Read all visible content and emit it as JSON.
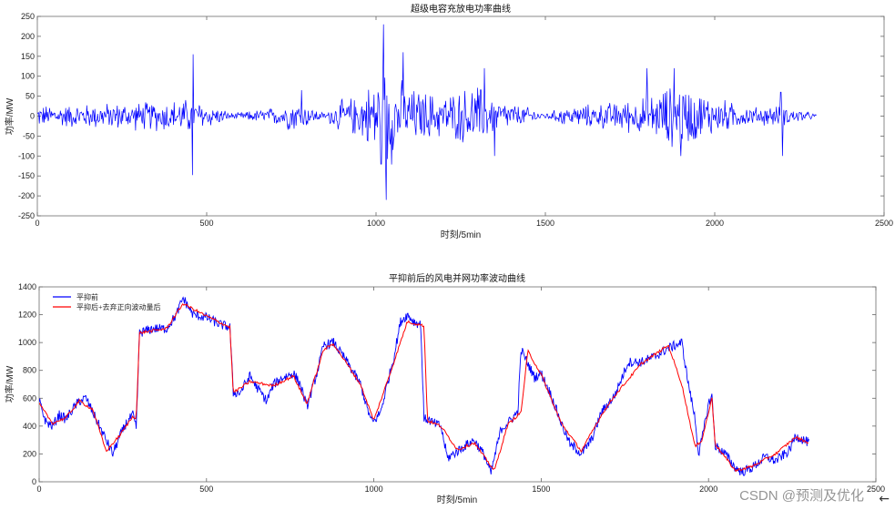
{
  "chart_data": [
    {
      "type": "line",
      "title": "超级电容充放电功率曲线",
      "xlabel": "时刻/5min",
      "ylabel": "功率/MW",
      "xlim": [
        0,
        2500
      ],
      "ylim": [
        -250,
        250
      ],
      "xticks": [
        0,
        500,
        1000,
        1500,
        2000,
        2500
      ],
      "yticks": [
        -250,
        -200,
        -150,
        -100,
        -50,
        0,
        50,
        100,
        150,
        200,
        250
      ],
      "grid": false,
      "series": [
        {
          "color": "#0000ff",
          "x_range": [
            0,
            2300
          ],
          "envelope_x": [
            0,
            150,
            300,
            450,
            500,
            580,
            700,
            760,
            850,
            880,
            950,
            1000,
            1020,
            1030,
            1050,
            1100,
            1200,
            1300,
            1350,
            1400,
            1450,
            1500,
            1550,
            1700,
            1800,
            1850,
            1900,
            1950,
            2000,
            2100,
            2180,
            2250,
            2300
          ],
          "envelope_amplitude": [
            30,
            35,
            40,
            50,
            35,
            8,
            25,
            45,
            8,
            40,
            60,
            110,
            140,
            200,
            120,
            80,
            60,
            90,
            50,
            35,
            25,
            8,
            25,
            40,
            55,
            80,
            95,
            70,
            55,
            25,
            30,
            20,
            5
          ],
          "peaks": [
            {
              "x": 460,
              "y": 155
            },
            {
              "x": 458,
              "y": -148
            },
            {
              "x": 1022,
              "y": 230
            },
            {
              "x": 1030,
              "y": -210
            },
            {
              "x": 1015,
              "y": -120
            },
            {
              "x": 1080,
              "y": 160
            },
            {
              "x": 1320,
              "y": 120
            },
            {
              "x": 1350,
              "y": -100
            },
            {
              "x": 780,
              "y": 65
            },
            {
              "x": 1800,
              "y": 120
            },
            {
              "x": 1880,
              "y": 120
            },
            {
              "x": 1900,
              "y": -100
            },
            {
              "x": 2200,
              "y": -100
            },
            {
              "x": 2195,
              "y": 60
            }
          ]
        }
      ]
    },
    {
      "type": "line",
      "title": "平抑前后的风电并网功率波动曲线",
      "xlabel": "时刻/5min",
      "ylabel": "功率/MW",
      "xlim": [
        0,
        2500
      ],
      "ylim": [
        0,
        1400
      ],
      "xticks": [
        0,
        500,
        1000,
        1500,
        2000,
        2500
      ],
      "yticks": [
        0,
        200,
        400,
        600,
        800,
        1000,
        1200,
        1400
      ],
      "grid": false,
      "legend_position": "top-left",
      "series": [
        {
          "name": "平抑前",
          "color": "#0000ff",
          "x": [
            0,
            20,
            40,
            60,
            80,
            100,
            120,
            140,
            160,
            180,
            200,
            220,
            240,
            260,
            280,
            290,
            300,
            340,
            380,
            410,
            430,
            460,
            500,
            540,
            570,
            580,
            600,
            630,
            650,
            680,
            700,
            730,
            760,
            780,
            800,
            830,
            850,
            880,
            920,
            960,
            990,
            1000,
            1020,
            1040,
            1060,
            1080,
            1100,
            1120,
            1140,
            1150,
            1160,
            1180,
            1200,
            1220,
            1250,
            1280,
            1300,
            1330,
            1350,
            1360,
            1380,
            1400,
            1430,
            1440,
            1460,
            1480,
            1500,
            1530,
            1560,
            1590,
            1600,
            1620,
            1650,
            1680,
            1720,
            1760,
            1800,
            1840,
            1880,
            1920,
            1940,
            1960,
            1970,
            1980,
            2000,
            2010,
            2020,
            2050,
            2080,
            2100,
            2130,
            2170,
            2200,
            2240,
            2260,
            2300
          ],
          "y": [
            580,
            430,
            400,
            480,
            450,
            520,
            580,
            600,
            500,
            400,
            300,
            200,
            320,
            420,
            480,
            380,
            1070,
            1100,
            1100,
            1200,
            1320,
            1200,
            1180,
            1130,
            1110,
            640,
            640,
            760,
            680,
            580,
            700,
            750,
            780,
            700,
            540,
            780,
            980,
            1000,
            860,
            700,
            450,
            430,
            500,
            700,
            900,
            1150,
            1200,
            1150,
            1130,
            450,
            450,
            420,
            400,
            170,
            220,
            270,
            300,
            190,
            60,
            170,
            380,
            420,
            500,
            950,
            850,
            750,
            780,
            620,
            420,
            250,
            250,
            200,
            300,
            500,
            620,
            860,
            860,
            900,
            960,
            1000,
            700,
            450,
            200,
            300,
            560,
            620,
            260,
            200,
            100,
            70,
            100,
            180,
            150,
            220,
            330,
            280
          ]
        },
        {
          "name": "平抑后+去弃正向波动量后",
          "color": "#ff0000",
          "x": [
            0,
            40,
            80,
            120,
            160,
            200,
            240,
            280,
            290,
            300,
            380,
            430,
            500,
            570,
            580,
            630,
            700,
            760,
            800,
            850,
            880,
            960,
            1000,
            1060,
            1100,
            1150,
            1160,
            1200,
            1250,
            1300,
            1360,
            1400,
            1440,
            1460,
            1500,
            1560,
            1620,
            1680,
            1720,
            1800,
            1880,
            1920,
            1960,
            1980,
            2010,
            2020,
            2080,
            2130,
            2200,
            2260,
            2300
          ],
          "y": [
            560,
            420,
            460,
            580,
            520,
            220,
            330,
            470,
            460,
            1070,
            1100,
            1280,
            1190,
            1110,
            640,
            720,
            690,
            760,
            560,
            950,
            990,
            700,
            440,
            860,
            1150,
            1120,
            440,
            400,
            230,
            280,
            80,
            410,
            500,
            940,
            770,
            420,
            220,
            480,
            620,
            850,
            980,
            700,
            250,
            300,
            600,
            270,
            80,
            110,
            200,
            320,
            280
          ]
        }
      ]
    }
  ],
  "watermark": "CSDN @预测及优化",
  "icons": {
    "back": "arrow-left-icon"
  }
}
